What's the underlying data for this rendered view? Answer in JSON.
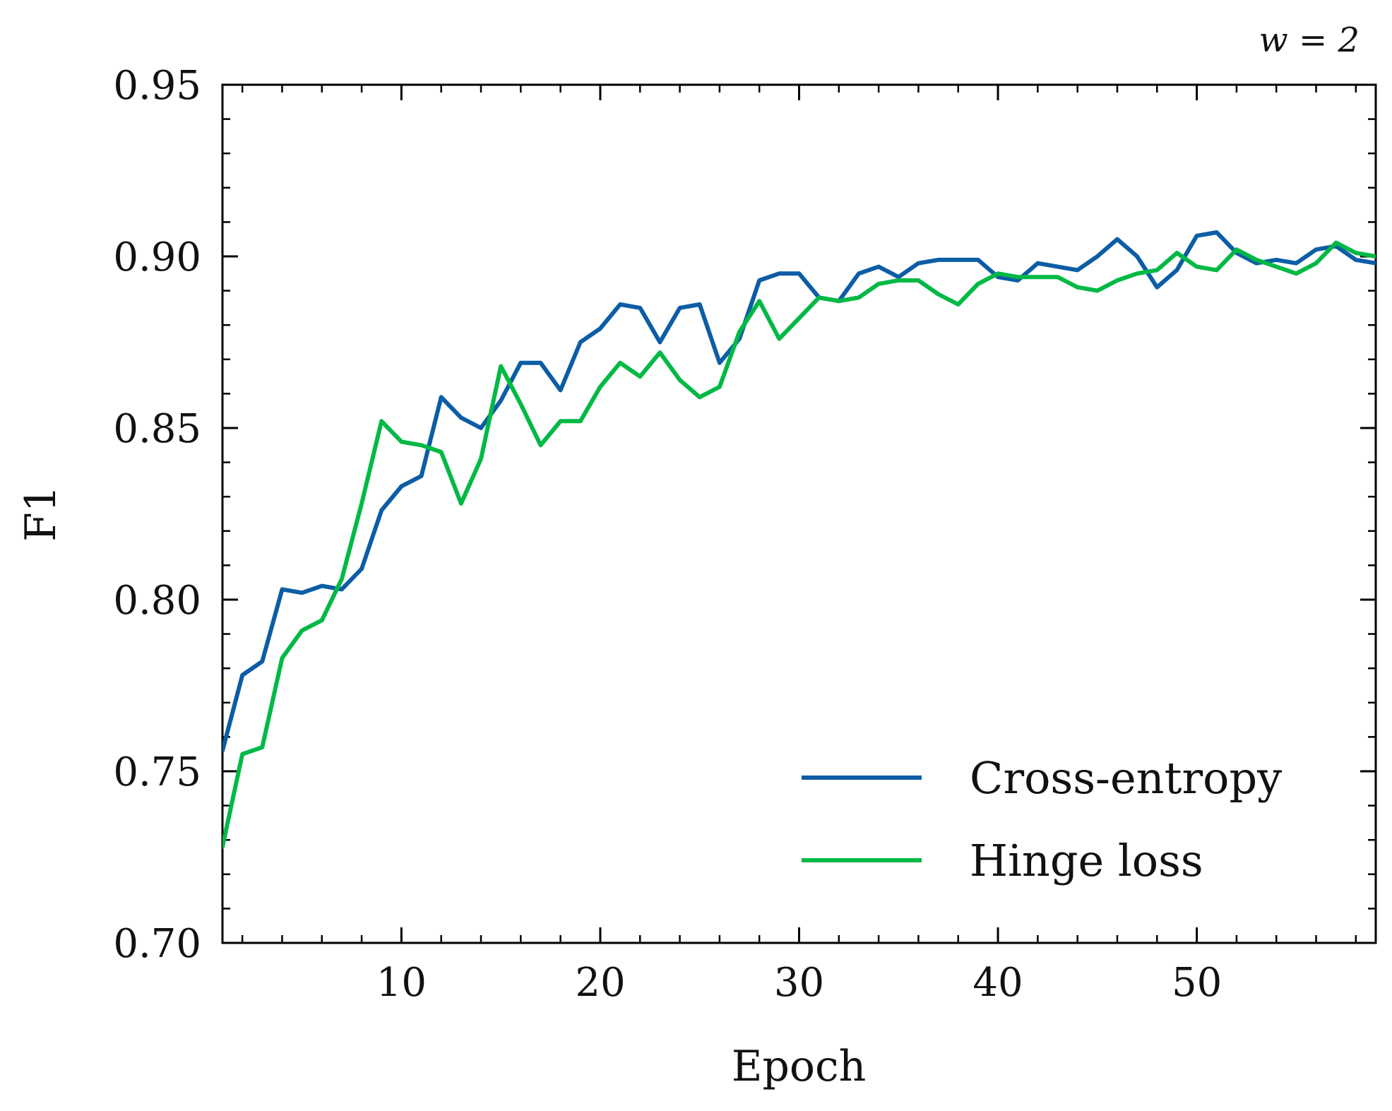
{
  "chart_data": {
    "type": "line",
    "annotation": "w = 2",
    "xlabel": "Epoch",
    "ylabel": "F1",
    "xlim": [
      1,
      59
    ],
    "ylim": [
      0.7,
      0.95
    ],
    "x_ticks": [
      10,
      20,
      30,
      40,
      50
    ],
    "x_tick_labels": [
      "10",
      "20",
      "30",
      "40",
      "50"
    ],
    "y_ticks": [
      0.7,
      0.75,
      0.8,
      0.85,
      0.9,
      0.95
    ],
    "y_tick_labels": [
      "0.70",
      "0.75",
      "0.80",
      "0.85",
      "0.90",
      "0.95"
    ],
    "x_minor_step": 2,
    "y_minor_step": 0.01,
    "grid": false,
    "legend_position": "bottom-right",
    "x": [
      1,
      2,
      3,
      4,
      5,
      6,
      7,
      8,
      9,
      10,
      11,
      12,
      13,
      14,
      15,
      16,
      17,
      18,
      19,
      20,
      21,
      22,
      23,
      24,
      25,
      26,
      27,
      28,
      29,
      30,
      31,
      32,
      33,
      34,
      35,
      36,
      37,
      38,
      39,
      40,
      41,
      42,
      43,
      44,
      45,
      46,
      47,
      48,
      49,
      50,
      51,
      52,
      53,
      54,
      55,
      56,
      57,
      58,
      59
    ],
    "series": [
      {
        "name": "Cross-entropy",
        "color": "#0C5DA5",
        "values": [
          0.756,
          0.778,
          0.782,
          0.803,
          0.802,
          0.804,
          0.803,
          0.809,
          0.826,
          0.833,
          0.836,
          0.859,
          0.853,
          0.85,
          0.858,
          0.869,
          0.869,
          0.861,
          0.875,
          0.879,
          0.886,
          0.885,
          0.875,
          0.885,
          0.886,
          0.869,
          0.876,
          0.893,
          0.895,
          0.895,
          0.888,
          0.887,
          0.895,
          0.897,
          0.894,
          0.898,
          0.899,
          0.899,
          0.899,
          0.894,
          0.893,
          0.898,
          0.897,
          0.896,
          0.9,
          0.905,
          0.9,
          0.891,
          0.896,
          0.906,
          0.907,
          0.901,
          0.898,
          0.899,
          0.898,
          0.902,
          0.903,
          0.899,
          0.898
        ]
      },
      {
        "name": "Hinge loss",
        "color": "#00B945",
        "values": [
          0.728,
          0.755,
          0.757,
          0.783,
          0.791,
          0.794,
          0.806,
          0.828,
          0.852,
          0.846,
          0.845,
          0.843,
          0.828,
          0.841,
          0.868,
          0.857,
          0.845,
          0.852,
          0.852,
          0.862,
          0.869,
          0.865,
          0.872,
          0.864,
          0.859,
          0.862,
          0.878,
          0.887,
          0.876,
          0.882,
          0.888,
          0.887,
          0.888,
          0.892,
          0.893,
          0.893,
          0.889,
          0.886,
          0.892,
          0.895,
          0.894,
          0.894,
          0.894,
          0.891,
          0.89,
          0.893,
          0.895,
          0.896,
          0.901,
          0.897,
          0.896,
          0.902,
          0.899,
          0.897,
          0.895,
          0.898,
          0.904,
          0.901,
          0.9
        ]
      }
    ]
  }
}
